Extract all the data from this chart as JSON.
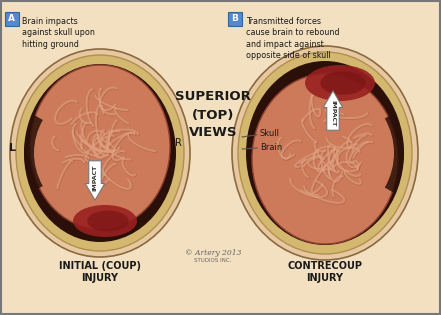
{
  "bg_color": "#f2e0c0",
  "title_center": "SUPERIOR\n(TOP)\nVIEWS",
  "caption_A": "Brain impacts\nagainst skull upon\nhitting ground",
  "caption_B": "Transmitted forces\ncause brain to rebound\nand impact against\nopposite side of skull",
  "skull_label": "Skull",
  "brain_label": "Brain",
  "impact_label": "IMPACT",
  "bottom_A": "INITIAL (COUP)\nINJURY",
  "bottom_B": "CONTRECOUP\nINJURY",
  "copyright_text": "© Artery 2013",
  "copyright_sub": "STUDIOS INC.",
  "skull_outer": "#e8c8a0",
  "skull_yellow": "#d4b870",
  "dark_gap": "#2a1008",
  "brain_base": "#cc7a5a",
  "brain_light": "#dda080",
  "brain_highlight": "#e8b090",
  "injury_dark": "#7a1515",
  "injury_mid": "#992020",
  "arrow_white": "#ffffff",
  "box_blue": "#5588cc",
  "text_dark": "#1a1a1a",
  "gyri_shadow": "#b06040",
  "gyri_light": "#e0a080"
}
